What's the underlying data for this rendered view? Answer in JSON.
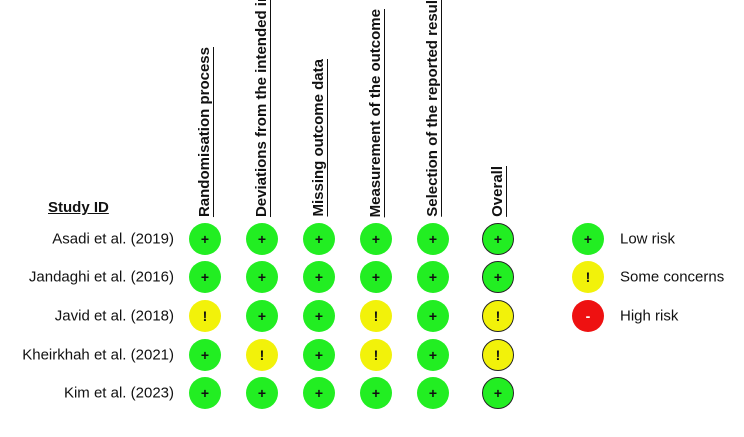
{
  "header": {
    "study_id": "Study ID"
  },
  "domains": [
    {
      "label": "Randomisation process"
    },
    {
      "label": "Deviations from the intended interventions"
    },
    {
      "label": "Missing outcome data"
    },
    {
      "label": "Measurement of the outcome"
    },
    {
      "label": "Selection of the reported result"
    },
    {
      "label": "Overall"
    }
  ],
  "studies": [
    {
      "name": "Asadi et al. (2019)",
      "judgements": [
        "low",
        "low",
        "low",
        "low",
        "low",
        "low"
      ]
    },
    {
      "name": "Jandaghi et al. (2016)",
      "judgements": [
        "low",
        "low",
        "low",
        "low",
        "low",
        "low"
      ]
    },
    {
      "name": "Javid et al. (2018)",
      "judgements": [
        "some",
        "low",
        "low",
        "some",
        "low",
        "some"
      ]
    },
    {
      "name": "Kheirkhah et al. (2021)",
      "judgements": [
        "low",
        "some",
        "low",
        "some",
        "low",
        "some"
      ]
    },
    {
      "name": "Kim et al. (2023)",
      "judgements": [
        "low",
        "low",
        "low",
        "low",
        "low",
        "low"
      ]
    }
  ],
  "legend": [
    {
      "key": "low",
      "symbol": "+",
      "label": "Low risk",
      "color": "#22ee22"
    },
    {
      "key": "some",
      "symbol": "!",
      "label": "Some concerns",
      "color": "#f2f20a"
    },
    {
      "key": "high",
      "symbol": "-",
      "label": "High risk",
      "color": "#ee1111"
    }
  ]
}
